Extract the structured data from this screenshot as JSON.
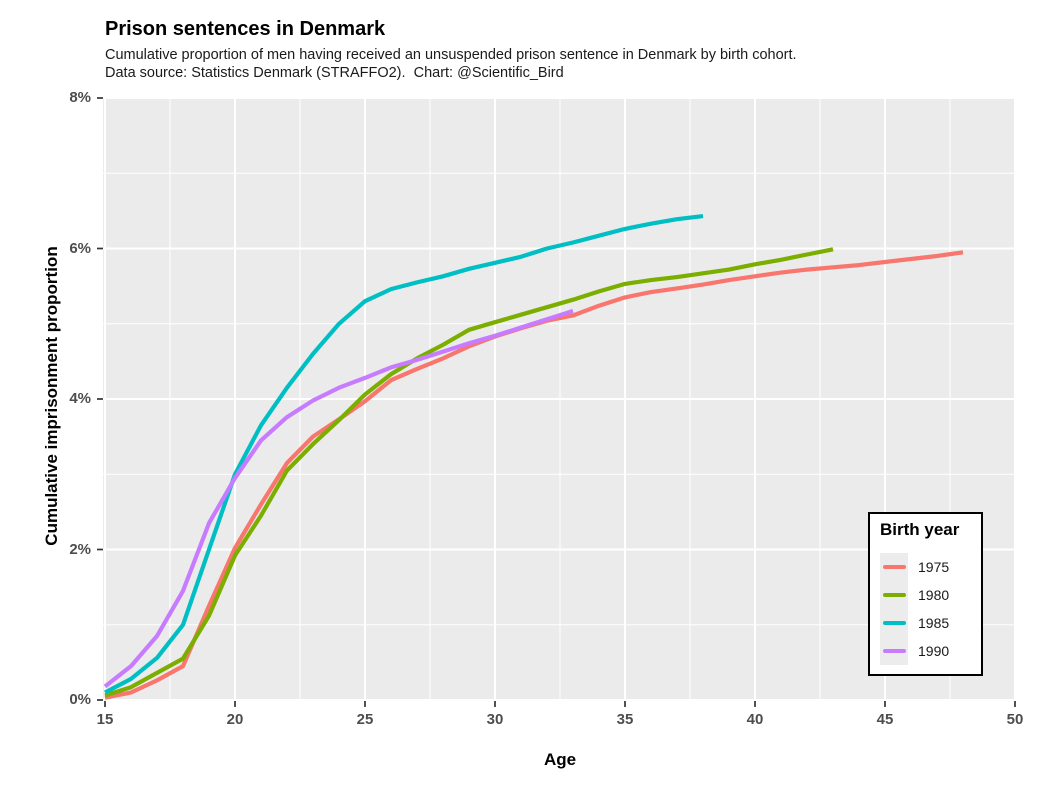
{
  "header": {
    "title": "Prison sentences in Denmark",
    "subtitle_line1": "Cumulative proportion of men having received an unsuspended prison sentence in Denmark by birth cohort.",
    "subtitle_line2": "Data source: Statistics Denmark (STRAFFO2).  Chart: @Scientific_Bird"
  },
  "style": {
    "panel_bg": "#EBEBEB",
    "grid_color": "#FFFFFF",
    "tick_color": "#333333",
    "tick_label_color": "#4D4D4D"
  },
  "chart_data": {
    "type": "line",
    "title": "Prison sentences in Denmark",
    "xlabel": "Age",
    "ylabel": "Cumulative imprisonment proportion",
    "x_axis": {
      "label": "Age",
      "range": [
        15,
        50
      ],
      "major_ticks": [
        15,
        20,
        25,
        30,
        35,
        40,
        45,
        50
      ],
      "minor_ticks": [
        17.5,
        22.5,
        27.5,
        32.5,
        37.5,
        42.5,
        47.5
      ]
    },
    "y_axis": {
      "label": "Cumulative imprisonment proportion",
      "unit": "percent",
      "range": [
        0,
        8
      ],
      "major_ticks": [
        0,
        2,
        4,
        6,
        8
      ],
      "tick_labels": [
        "0%",
        "2%",
        "4%",
        "6%",
        "8%"
      ],
      "minor_ticks": [
        1,
        3,
        5,
        7
      ]
    },
    "legend": {
      "title": "Birth year",
      "position": "inside-right"
    },
    "grid": true,
    "series": [
      {
        "name": "1975",
        "color": "#F8766D",
        "ages": [
          15,
          16,
          17,
          18,
          19,
          20,
          21,
          22,
          23,
          24,
          25,
          26,
          27,
          28,
          29,
          30,
          31,
          32,
          33,
          34,
          35,
          36,
          37,
          38,
          39,
          40,
          41,
          42,
          43,
          44,
          45,
          46,
          47,
          48
        ],
        "values": [
          0.03,
          0.1,
          0.26,
          0.45,
          1.25,
          2.02,
          2.6,
          3.15,
          3.5,
          3.73,
          3.97,
          4.25,
          4.4,
          4.54,
          4.7,
          4.83,
          4.94,
          5.04,
          5.11,
          5.24,
          5.35,
          5.42,
          5.47,
          5.52,
          5.58,
          5.63,
          5.68,
          5.72,
          5.75,
          5.78,
          5.82,
          5.86,
          5.9,
          5.95
        ]
      },
      {
        "name": "1980",
        "color": "#7CAE00",
        "ages": [
          15,
          16,
          17,
          18,
          19,
          20,
          21,
          22,
          23,
          24,
          25,
          26,
          27,
          28,
          29,
          30,
          31,
          32,
          33,
          34,
          35,
          36,
          37,
          38,
          39,
          40,
          41,
          42,
          43
        ],
        "values": [
          0.06,
          0.17,
          0.36,
          0.55,
          1.12,
          1.92,
          2.45,
          3.05,
          3.4,
          3.72,
          4.06,
          4.33,
          4.54,
          4.72,
          4.92,
          5.02,
          5.12,
          5.22,
          5.32,
          5.43,
          5.53,
          5.58,
          5.62,
          5.67,
          5.72,
          5.79,
          5.85,
          5.92,
          5.99
        ]
      },
      {
        "name": "1985",
        "color": "#00BFC4",
        "ages": [
          15,
          16,
          17,
          18,
          19,
          20,
          21,
          22,
          23,
          24,
          25,
          26,
          27,
          28,
          29,
          30,
          31,
          32,
          33,
          34,
          35,
          36,
          37,
          38
        ],
        "values": [
          0.1,
          0.28,
          0.56,
          1.0,
          2.0,
          3.0,
          3.65,
          4.15,
          4.6,
          5.0,
          5.3,
          5.46,
          5.55,
          5.63,
          5.73,
          5.81,
          5.89,
          6.0,
          6.08,
          6.17,
          6.26,
          6.33,
          6.39,
          6.43
        ]
      },
      {
        "name": "1990",
        "color": "#C77CFF",
        "ages": [
          15,
          16,
          17,
          18,
          19,
          20,
          21,
          22,
          23,
          24,
          25,
          26,
          27,
          28,
          29,
          30,
          31,
          32,
          33
        ],
        "values": [
          0.18,
          0.45,
          0.85,
          1.45,
          2.35,
          2.95,
          3.45,
          3.76,
          3.98,
          4.15,
          4.28,
          4.42,
          4.52,
          4.63,
          4.74,
          4.84,
          4.95,
          5.06,
          5.17
        ]
      }
    ]
  }
}
